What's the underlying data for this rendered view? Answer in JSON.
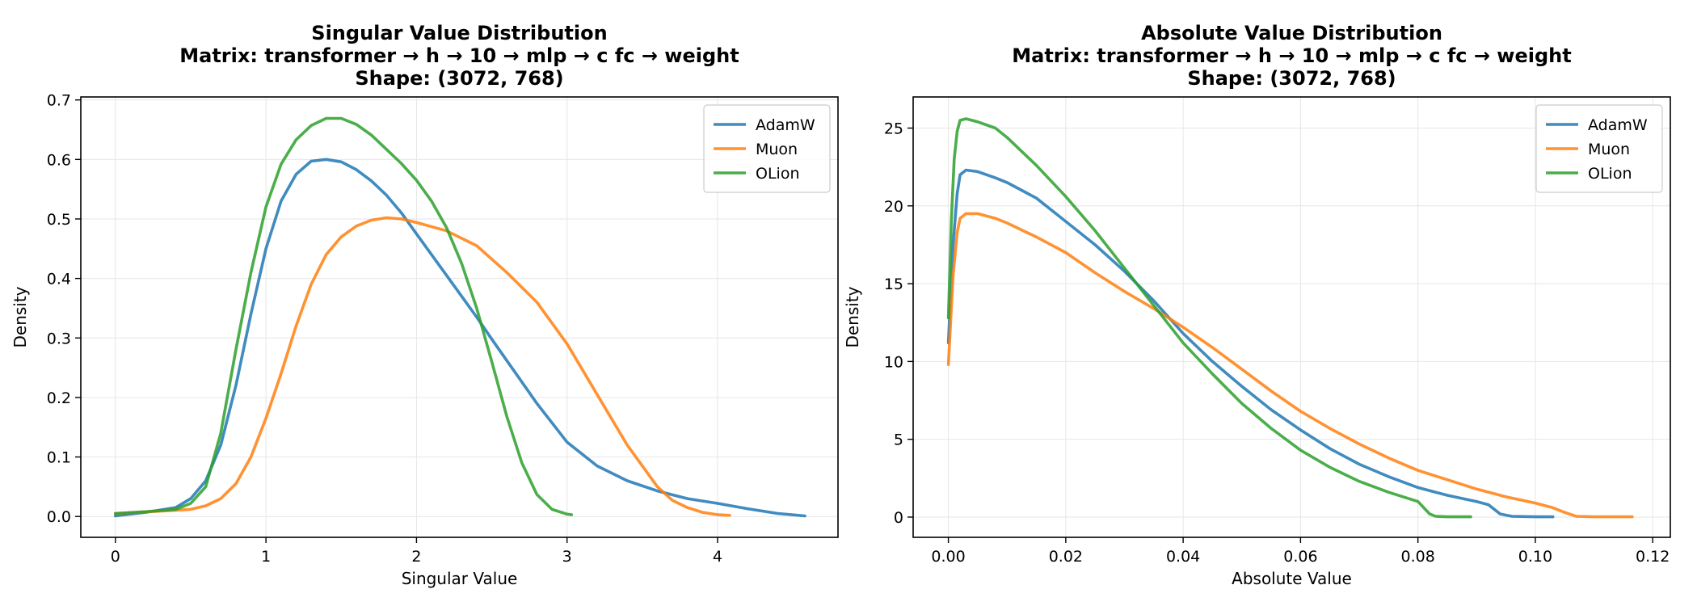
{
  "colors": {
    "AdamW": "#1f77b4",
    "Muon": "#ff7f0e",
    "OLion": "#2ca02c"
  },
  "chart_data": [
    {
      "type": "line",
      "title": [
        "Singular Value Distribution",
        "Matrix: transformer → h → 10 → mlp → c fc → weight",
        "Shape: (3072, 768)"
      ],
      "xlabel": "Singular Value",
      "ylabel": "Density",
      "xlim": [
        -0.23,
        4.8
      ],
      "ylim": [
        -0.035,
        0.705
      ],
      "xticks": [
        0,
        1,
        2,
        3,
        4
      ],
      "xtick_labels": [
        "0",
        "1",
        "2",
        "3",
        "4"
      ],
      "yticks": [
        0.0,
        0.1,
        0.2,
        0.3,
        0.4,
        0.5,
        0.6,
        0.7
      ],
      "ytick_labels": [
        "0.0",
        "0.1",
        "0.2",
        "0.3",
        "0.4",
        "0.5",
        "0.6",
        "0.7"
      ],
      "legend": "top-right",
      "series": [
        {
          "name": "AdamW",
          "x": [
            0.0,
            0.2,
            0.4,
            0.5,
            0.6,
            0.7,
            0.8,
            0.9,
            1.0,
            1.1,
            1.2,
            1.3,
            1.4,
            1.5,
            1.6,
            1.7,
            1.8,
            1.9,
            2.0,
            2.2,
            2.4,
            2.5,
            2.6,
            2.8,
            3.0,
            3.2,
            3.4,
            3.6,
            3.8,
            4.0,
            4.2,
            4.4,
            4.58
          ],
          "y": [
            0.001,
            0.007,
            0.015,
            0.03,
            0.06,
            0.12,
            0.22,
            0.34,
            0.45,
            0.53,
            0.575,
            0.597,
            0.6,
            0.596,
            0.583,
            0.564,
            0.54,
            0.51,
            0.475,
            0.405,
            0.335,
            0.298,
            0.262,
            0.19,
            0.125,
            0.085,
            0.06,
            0.043,
            0.03,
            0.022,
            0.013,
            0.005,
            0.001
          ]
        },
        {
          "name": "Muon",
          "x": [
            0.0,
            0.3,
            0.5,
            0.6,
            0.7,
            0.8,
            0.9,
            1.0,
            1.1,
            1.2,
            1.3,
            1.4,
            1.5,
            1.6,
            1.7,
            1.8,
            1.9,
            2.0,
            2.2,
            2.4,
            2.6,
            2.8,
            3.0,
            3.2,
            3.4,
            3.6,
            3.7,
            3.8,
            3.9,
            4.0,
            4.08
          ],
          "y": [
            0.005,
            0.009,
            0.012,
            0.018,
            0.03,
            0.055,
            0.1,
            0.165,
            0.24,
            0.32,
            0.39,
            0.44,
            0.47,
            0.488,
            0.498,
            0.502,
            0.5,
            0.494,
            0.48,
            0.455,
            0.41,
            0.36,
            0.29,
            0.205,
            0.12,
            0.05,
            0.027,
            0.015,
            0.007,
            0.003,
            0.002
          ]
        },
        {
          "name": "OLion",
          "x": [
            0.0,
            0.2,
            0.4,
            0.5,
            0.6,
            0.7,
            0.8,
            0.9,
            1.0,
            1.1,
            1.2,
            1.3,
            1.4,
            1.5,
            1.6,
            1.7,
            1.8,
            1.9,
            2.0,
            2.1,
            2.2,
            2.3,
            2.4,
            2.5,
            2.6,
            2.7,
            2.8,
            2.9,
            3.0,
            3.03
          ],
          "y": [
            0.005,
            0.008,
            0.012,
            0.022,
            0.05,
            0.14,
            0.28,
            0.41,
            0.52,
            0.592,
            0.633,
            0.657,
            0.669,
            0.669,
            0.659,
            0.641,
            0.617,
            0.593,
            0.565,
            0.53,
            0.485,
            0.425,
            0.35,
            0.26,
            0.168,
            0.09,
            0.037,
            0.012,
            0.004,
            0.003
          ]
        }
      ]
    },
    {
      "type": "line",
      "title": [
        "Absolute Value Distribution",
        "Matrix: transformer → h → 10 → mlp → c fc → weight",
        "Shape: (3072, 768)"
      ],
      "xlabel": "Absolute Value",
      "ylabel": "Density",
      "xlim": [
        -0.006,
        0.123
      ],
      "ylim": [
        -1.3,
        27.0
      ],
      "xticks": [
        0.0,
        0.02,
        0.04,
        0.06,
        0.08,
        0.1,
        0.12
      ],
      "xtick_labels": [
        "0.00",
        "0.02",
        "0.04",
        "0.06",
        "0.08",
        "0.10",
        "0.12"
      ],
      "yticks": [
        0,
        5,
        10,
        15,
        20,
        25
      ],
      "ytick_labels": [
        "0",
        "5",
        "10",
        "15",
        "20",
        "25"
      ],
      "legend": "top-right",
      "series": [
        {
          "name": "AdamW",
          "x": [
            0.0,
            0.0008,
            0.0015,
            0.002,
            0.003,
            0.005,
            0.008,
            0.01,
            0.015,
            0.02,
            0.025,
            0.03,
            0.035,
            0.04,
            0.045,
            0.05,
            0.055,
            0.06,
            0.065,
            0.07,
            0.075,
            0.08,
            0.085,
            0.09,
            0.092,
            0.094,
            0.096,
            0.1,
            0.103
          ],
          "y": [
            11.2,
            17.5,
            20.8,
            22.0,
            22.3,
            22.2,
            21.8,
            21.5,
            20.5,
            19.0,
            17.5,
            15.8,
            13.9,
            11.8,
            10.0,
            8.4,
            6.9,
            5.6,
            4.4,
            3.4,
            2.6,
            1.9,
            1.4,
            1.0,
            0.8,
            0.2,
            0.05,
            0.02,
            0.02
          ]
        },
        {
          "name": "Muon",
          "x": [
            0.0,
            0.0008,
            0.0015,
            0.002,
            0.003,
            0.005,
            0.008,
            0.01,
            0.015,
            0.02,
            0.025,
            0.03,
            0.035,
            0.04,
            0.045,
            0.05,
            0.055,
            0.06,
            0.065,
            0.07,
            0.075,
            0.08,
            0.085,
            0.09,
            0.095,
            0.1,
            0.103,
            0.105,
            0.107,
            0.11,
            0.1165
          ],
          "y": [
            9.8,
            15.5,
            18.3,
            19.2,
            19.5,
            19.5,
            19.2,
            18.9,
            18.0,
            17.0,
            15.7,
            14.5,
            13.4,
            12.2,
            10.9,
            9.5,
            8.1,
            6.8,
            5.7,
            4.7,
            3.8,
            3.0,
            2.4,
            1.8,
            1.3,
            0.9,
            0.6,
            0.3,
            0.05,
            0.02,
            0.02
          ]
        },
        {
          "name": "OLion",
          "x": [
            0.0,
            0.0005,
            0.001,
            0.0015,
            0.002,
            0.003,
            0.005,
            0.008,
            0.01,
            0.015,
            0.02,
            0.025,
            0.03,
            0.035,
            0.04,
            0.045,
            0.05,
            0.055,
            0.06,
            0.065,
            0.07,
            0.075,
            0.08,
            0.081,
            0.082,
            0.083,
            0.085,
            0.089
          ],
          "y": [
            12.8,
            19.0,
            23.0,
            24.8,
            25.5,
            25.6,
            25.4,
            25.0,
            24.4,
            22.6,
            20.6,
            18.4,
            16.0,
            13.6,
            11.2,
            9.2,
            7.3,
            5.7,
            4.3,
            3.2,
            2.3,
            1.6,
            1.0,
            0.6,
            0.2,
            0.05,
            0.02,
            0.02
          ]
        }
      ]
    }
  ]
}
